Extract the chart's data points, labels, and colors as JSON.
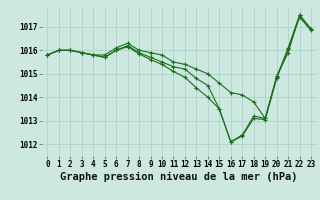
{
  "background_color": "#cce8e0",
  "grid_color": "#aad4c8",
  "line_color": "#1a6e1a",
  "xlabel": "Graphe pression niveau de la mer (hPa)",
  "xlabel_fontsize": 7.5,
  "ylim": [
    1011.5,
    1017.8
  ],
  "xlim": [
    -0.5,
    23.5
  ],
  "yticks": [
    1012,
    1013,
    1014,
    1015,
    1016,
    1017
  ],
  "xtick_labels": [
    "0",
    "1",
    "2",
    "3",
    "4",
    "5",
    "6",
    "7",
    "8",
    "9",
    "10",
    "11",
    "12",
    "13",
    "14",
    "15",
    "16",
    "17",
    "18",
    "19",
    "20",
    "21",
    "22",
    "23"
  ],
  "series": [
    [
      1015.8,
      1016.0,
      1016.0,
      1015.9,
      1015.8,
      1015.8,
      1016.1,
      1016.3,
      1016.0,
      1015.9,
      1015.8,
      1015.5,
      1015.4,
      1015.2,
      1015.0,
      1014.6,
      1014.2,
      1014.1,
      1013.8,
      1013.1,
      1014.9,
      1015.9,
      1017.5,
      1016.9
    ],
    [
      1015.8,
      1016.0,
      1016.0,
      1015.9,
      1015.8,
      1015.7,
      1016.0,
      1016.2,
      1015.9,
      1015.7,
      1015.5,
      1015.3,
      1015.2,
      1014.8,
      1014.5,
      1013.5,
      1012.1,
      1012.4,
      1013.2,
      1013.1,
      1014.85,
      1016.1,
      1017.5,
      1016.9
    ],
    [
      1015.8,
      1016.0,
      1016.0,
      1015.9,
      1015.8,
      1015.7,
      1016.0,
      1016.15,
      1015.85,
      1015.6,
      1015.4,
      1015.1,
      1014.85,
      1014.4,
      1014.0,
      1013.5,
      1012.1,
      1012.35,
      1013.1,
      1013.05,
      1014.8,
      1016.05,
      1017.4,
      1016.85
    ]
  ],
  "tick_fontsize": 5.5,
  "marker": "+",
  "markersize": 3.5,
  "linewidth": 0.8
}
